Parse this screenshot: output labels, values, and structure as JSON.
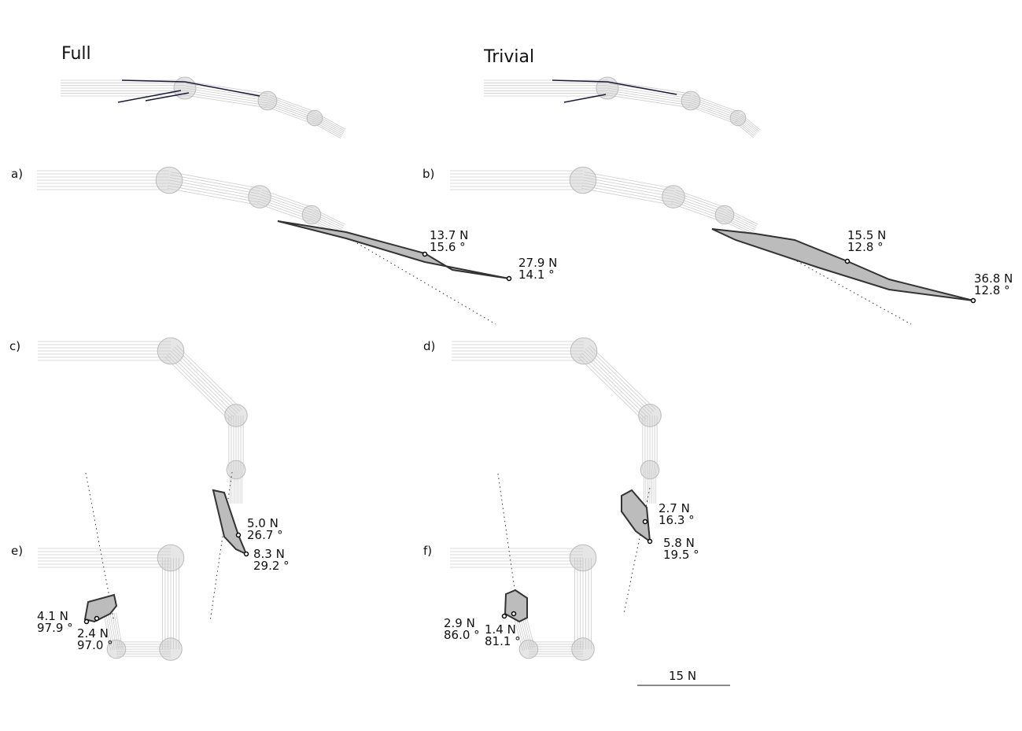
{
  "headers": [
    "Full",
    "Trivial"
  ],
  "panels": [
    {
      "label": "a)",
      "annotations": [
        {
          "force": "13.7 N",
          "angle": "15.6 °"
        },
        {
          "force": "27.9 N",
          "angle": "14.1 °"
        }
      ]
    },
    {
      "label": "b)",
      "annotations": [
        {
          "force": "15.5 N",
          "angle": "12.8 °"
        },
        {
          "force": "36.8 N",
          "angle": "12.8 °"
        }
      ]
    },
    {
      "label": "c)",
      "annotations": [
        {
          "force": "5.0 N",
          "angle": "26.7 °"
        },
        {
          "force": "8.3 N",
          "angle": "29.2 °"
        }
      ]
    },
    {
      "label": "d)",
      "annotations": [
        {
          "force": "2.7 N",
          "angle": "16.3 °"
        },
        {
          "force": "5.8 N",
          "angle": "19.5 °"
        }
      ]
    },
    {
      "label": "e)",
      "annotations": [
        {
          "force": "4.1 N",
          "angle": "97.9 °"
        },
        {
          "force": "2.4 N",
          "angle": "97.0 °"
        }
      ]
    },
    {
      "label": "f)",
      "annotations": [
        {
          "force": "2.9 N",
          "angle": "86.0 °"
        },
        {
          "force": "1.4 N",
          "angle": "81.1 °"
        }
      ]
    }
  ],
  "scale_bar": "15 N"
}
